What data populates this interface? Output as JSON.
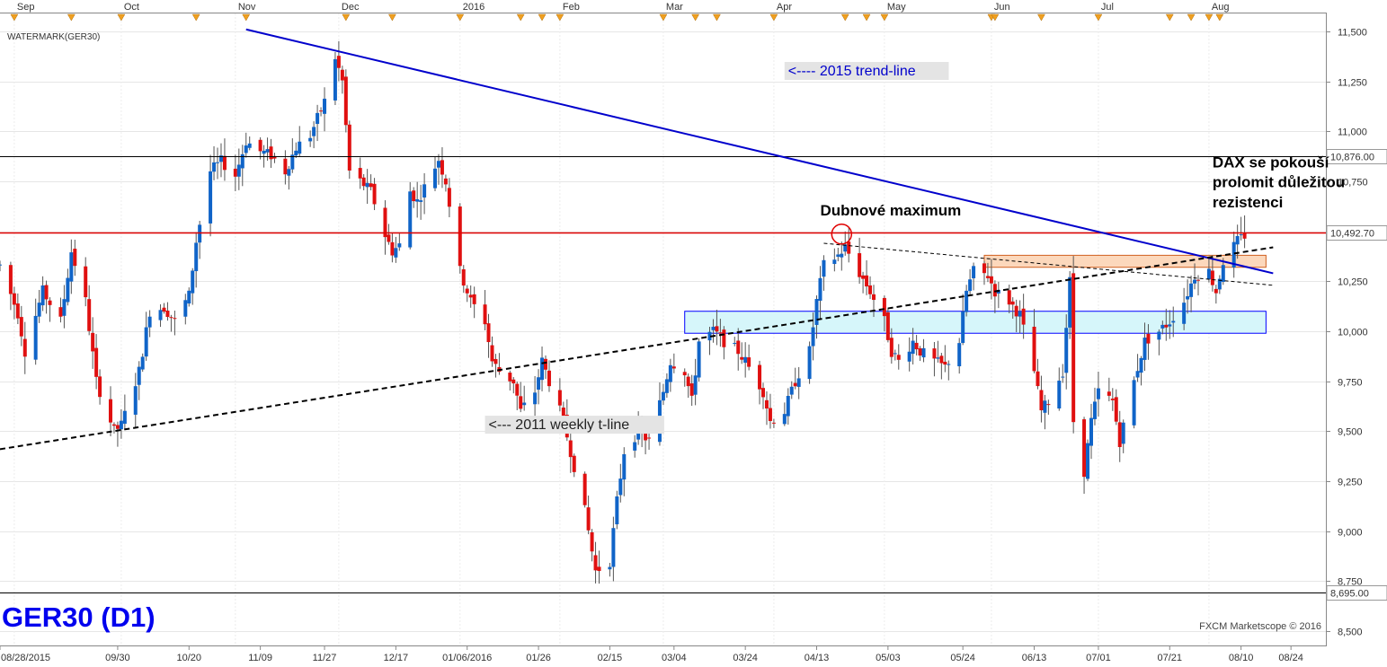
{
  "chart_data": {
    "type": "candlestick",
    "title": "GER30 (D1)",
    "watermark": "WATERMARK(GER30)",
    "credit": "FXCM Marketscope © 2016",
    "ylim": [
      8500,
      11550
    ],
    "y_ticks": [
      "11,500",
      "11,250",
      "11,000",
      "10,750",
      "10,500",
      "10,250",
      "10,000",
      "9,750",
      "9,500",
      "9,250",
      "9,000",
      "8,750",
      "8,500"
    ],
    "y_tick_values": [
      11500,
      11250,
      11000,
      10750,
      10500,
      10250,
      10000,
      9750,
      9500,
      9250,
      9000,
      8750,
      8500
    ],
    "x_range": [
      "2015-08-28",
      "2016-08-29"
    ],
    "month_labels": [
      {
        "label": "Sep",
        "date": "2015-09-01"
      },
      {
        "label": "Oct",
        "date": "2015-10-01"
      },
      {
        "label": "Nov",
        "date": "2015-11-02"
      },
      {
        "label": "Dec",
        "date": "2015-12-01"
      },
      {
        "label": "2016",
        "date": "2016-01-04"
      },
      {
        "label": "Feb",
        "date": "2016-02-01"
      },
      {
        "label": "Mar",
        "date": "2016-03-01"
      },
      {
        "label": "Apr",
        "date": "2016-04-01"
      },
      {
        "label": "May",
        "date": "2016-05-02"
      },
      {
        "label": "Jun",
        "date": "2016-06-01"
      },
      {
        "label": "Jul",
        "date": "2016-07-01"
      },
      {
        "label": "Aug",
        "date": "2016-08-01"
      }
    ],
    "event_markers": [
      "2015-09-01",
      "2015-09-17",
      "2015-10-01",
      "2015-10-22",
      "2015-11-05",
      "2015-12-03",
      "2015-12-16",
      "2016-01-04",
      "2016-01-21",
      "2016-01-27",
      "2016-02-01",
      "2016-03-01",
      "2016-03-10",
      "2016-03-16",
      "2016-04-01",
      "2016-04-21",
      "2016-04-27",
      "2016-05-02",
      "2016-06-01",
      "2016-06-02",
      "2016-06-15",
      "2016-07-01",
      "2016-07-21",
      "2016-07-27",
      "2016-08-01",
      "2016-08-04"
    ],
    "x_ticks": [
      {
        "label": "08/28/2015",
        "date": "2015-08-28"
      },
      {
        "label": "09/30",
        "date": "2015-09-30"
      },
      {
        "label": "10/20",
        "date": "2015-10-20"
      },
      {
        "label": "11/09",
        "date": "2015-11-09"
      },
      {
        "label": "11/27",
        "date": "2015-11-27"
      },
      {
        "label": "12/17",
        "date": "2015-12-17"
      },
      {
        "label": "01/06/2016",
        "date": "2016-01-06"
      },
      {
        "label": "01/26",
        "date": "2016-01-26"
      },
      {
        "label": "02/15",
        "date": "2016-02-15"
      },
      {
        "label": "03/04",
        "date": "2016-03-04"
      },
      {
        "label": "03/24",
        "date": "2016-03-24"
      },
      {
        "label": "04/13",
        "date": "2016-04-13"
      },
      {
        "label": "05/03",
        "date": "2016-05-03"
      },
      {
        "label": "05/24",
        "date": "2016-05-24"
      },
      {
        "label": "06/13",
        "date": "2016-06-13"
      },
      {
        "label": "07/01",
        "date": "2016-07-01"
      },
      {
        "label": "07/21",
        "date": "2016-07-21"
      },
      {
        "label": "08/10",
        "date": "2016-08-10"
      },
      {
        "label": "08/24",
        "date": "2016-08-24"
      }
    ],
    "horizontal_levels": [
      {
        "value": 10876,
        "label": "10,876.00",
        "color": "#000000"
      },
      {
        "value": 10492.7,
        "label": "10,492.70",
        "color": "#e00000"
      },
      {
        "value": 8695,
        "label": "8,695.00",
        "color": "#000000"
      }
    ],
    "trend_lines": [
      {
        "name": "2015 trend-line",
        "color": "#0000cc",
        "style": "solid",
        "from": {
          "date": "2015-11-05",
          "value": 11510
        },
        "to": {
          "date": "2016-08-19",
          "value": 10290
        }
      },
      {
        "name": "2011 weekly t-line",
        "color": "#000000",
        "style": "dashed",
        "from": {
          "date": "2015-08-28",
          "value": 9410
        },
        "to": {
          "date": "2016-08-19",
          "value": 10420
        }
      },
      {
        "name": "",
        "color": "#000000",
        "style": "dashed-thin",
        "from": {
          "date": "2016-04-15",
          "value": 10440
        },
        "to": {
          "date": "2016-08-19",
          "value": 10230
        }
      }
    ],
    "zones": [
      {
        "color": "#fcd8bc",
        "stroke": "#d06020",
        "from_date": "2016-05-30",
        "to_date": "2016-08-17",
        "low": 10320,
        "high": 10380
      },
      {
        "color": "#d6f6fa",
        "stroke": "#0000ff",
        "from_date": "2016-03-07",
        "to_date": "2016-08-17",
        "low": 9990,
        "high": 10100
      }
    ],
    "circle_marker": {
      "date": "2016-04-20",
      "value": 10486
    },
    "annotations": [
      {
        "id": "trend2015",
        "text": "<---- 2015 trend-line",
        "date": "2016-04-05",
        "value": 11280,
        "color": "#0000cc",
        "boxed": true
      },
      {
        "id": "tline2011",
        "text": "<--- 2011 weekly t-line",
        "date": "2016-01-12",
        "value": 9510,
        "color": "#222222",
        "boxed": true
      },
      {
        "id": "april-max",
        "text": "Dubnové maximum",
        "date": "2016-04-14",
        "value": 10580,
        "color": "#000000",
        "boxed": false
      },
      {
        "id": "dax-line1",
        "text": "DAX se pokouší",
        "date": "2016-08-02",
        "value": 10820,
        "color": "#000000",
        "boxed": false
      },
      {
        "id": "dax-line2",
        "text": "prolomit důležitou",
        "date": "2016-08-02",
        "value": 10720,
        "color": "#000000",
        "boxed": false
      },
      {
        "id": "dax-line3",
        "text": "rezistenci",
        "date": "2016-08-02",
        "value": 10620,
        "color": "#000000",
        "boxed": false
      }
    ],
    "colors": {
      "up": "#1064c8",
      "down": "#e01010",
      "wick": "#555555"
    },
    "waypoints": [
      [
        "2015-08-28",
        10330
      ],
      [
        "2015-09-02",
        10090
      ],
      [
        "2015-09-04",
        9900
      ],
      [
        "2015-09-09",
        10200
      ],
      [
        "2015-09-14",
        10050
      ],
      [
        "2015-09-17",
        10400
      ],
      [
        "2015-09-21",
        10150
      ],
      [
        "2015-09-24",
        9750
      ],
      [
        "2015-09-29",
        9500
      ],
      [
        "2015-10-01",
        9530
      ],
      [
        "2015-10-06",
        9800
      ],
      [
        "2015-10-09",
        10100
      ],
      [
        "2015-10-13",
        10120
      ],
      [
        "2015-10-16",
        10050
      ],
      [
        "2015-10-20",
        10180
      ],
      [
        "2015-10-22",
        10450
      ],
      [
        "2015-10-26",
        10800
      ],
      [
        "2015-10-29",
        10850
      ],
      [
        "2015-11-02",
        10780
      ],
      [
        "2015-11-05",
        10950
      ],
      [
        "2015-11-09",
        10900
      ],
      [
        "2015-11-12",
        10880
      ],
      [
        "2015-11-16",
        10800
      ],
      [
        "2015-11-19",
        10920
      ],
      [
        "2015-11-23",
        10980
      ],
      [
        "2015-11-27",
        11150
      ],
      [
        "2015-11-30",
        11370
      ],
      [
        "2015-12-02",
        11250
      ],
      [
        "2015-12-04",
        10800
      ],
      [
        "2015-12-07",
        10750
      ],
      [
        "2015-12-10",
        10700
      ],
      [
        "2015-12-14",
        10480
      ],
      [
        "2015-12-16",
        10400
      ],
      [
        "2015-12-18",
        10430
      ],
      [
        "2015-12-21",
        10700
      ],
      [
        "2015-12-23",
        10650
      ],
      [
        "2015-12-29",
        10860
      ],
      [
        "2015-12-31",
        10750
      ],
      [
        "2016-01-04",
        10300
      ],
      [
        "2016-01-07",
        10150
      ],
      [
        "2016-01-11",
        10050
      ],
      [
        "2016-01-13",
        9850
      ],
      [
        "2016-01-15",
        9800
      ],
      [
        "2016-01-19",
        9750
      ],
      [
        "2016-01-21",
        9600
      ],
      [
        "2016-01-25",
        9700
      ],
      [
        "2016-01-27",
        9850
      ],
      [
        "2016-01-29",
        9750
      ],
      [
        "2016-02-02",
        9550
      ],
      [
        "2016-02-04",
        9400
      ],
      [
        "2016-02-08",
        9100
      ],
      [
        "2016-02-11",
        8800
      ],
      [
        "2016-02-15",
        8850
      ],
      [
        "2016-02-17",
        9150
      ],
      [
        "2016-02-19",
        9400
      ],
      [
        "2016-02-23",
        9500
      ],
      [
        "2016-02-26",
        9450
      ],
      [
        "2016-03-01",
        9700
      ],
      [
        "2016-03-03",
        9850
      ],
      [
        "2016-03-07",
        9800
      ],
      [
        "2016-03-09",
        9650
      ],
      [
        "2016-03-11",
        9950
      ],
      [
        "2016-03-15",
        10000
      ],
      [
        "2016-03-18",
        9950
      ],
      [
        "2016-03-22",
        9900
      ],
      [
        "2016-03-24",
        9850
      ],
      [
        "2016-03-29",
        9700
      ],
      [
        "2016-03-31",
        9550
      ],
      [
        "2016-04-04",
        9600
      ],
      [
        "2016-04-07",
        9750
      ],
      [
        "2016-04-11",
        9900
      ],
      [
        "2016-04-13",
        10150
      ],
      [
        "2016-04-15",
        10330
      ],
      [
        "2016-04-19",
        10380
      ],
      [
        "2016-04-21",
        10420
      ],
      [
        "2016-04-25",
        10290
      ],
      [
        "2016-04-28",
        10200
      ],
      [
        "2016-05-02",
        10050
      ],
      [
        "2016-05-04",
        9900
      ],
      [
        "2016-05-06",
        9850
      ],
      [
        "2016-05-10",
        9950
      ],
      [
        "2016-05-12",
        9900
      ],
      [
        "2016-05-16",
        9850
      ],
      [
        "2016-05-19",
        9820
      ],
      [
        "2016-05-23",
        9950
      ],
      [
        "2016-05-25",
        10200
      ],
      [
        "2016-05-27",
        10300
      ],
      [
        "2016-05-31",
        10280
      ],
      [
        "2016-06-02",
        10200
      ],
      [
        "2016-06-06",
        10150
      ],
      [
        "2016-06-09",
        10080
      ],
      [
        "2016-06-13",
        9800
      ],
      [
        "2016-06-15",
        9600
      ],
      [
        "2016-06-17",
        9650
      ],
      [
        "2016-06-21",
        9800
      ],
      [
        "2016-06-23",
        10250
      ],
      [
        "2016-06-24",
        9550
      ],
      [
        "2016-06-27",
        9300
      ],
      [
        "2016-06-29",
        9550
      ],
      [
        "2016-07-01",
        9700
      ],
      [
        "2016-07-05",
        9650
      ],
      [
        "2016-07-07",
        9450
      ],
      [
        "2016-07-11",
        9750
      ],
      [
        "2016-07-14",
        9950
      ],
      [
        "2016-07-18",
        10000
      ],
      [
        "2016-07-21",
        10050
      ],
      [
        "2016-07-25",
        10150
      ],
      [
        "2016-07-28",
        10280
      ],
      [
        "2016-08-01",
        10300
      ],
      [
        "2016-08-03",
        10200
      ],
      [
        "2016-08-05",
        10350
      ],
      [
        "2016-08-09",
        10450
      ],
      [
        "2016-08-11",
        10480
      ]
    ]
  }
}
